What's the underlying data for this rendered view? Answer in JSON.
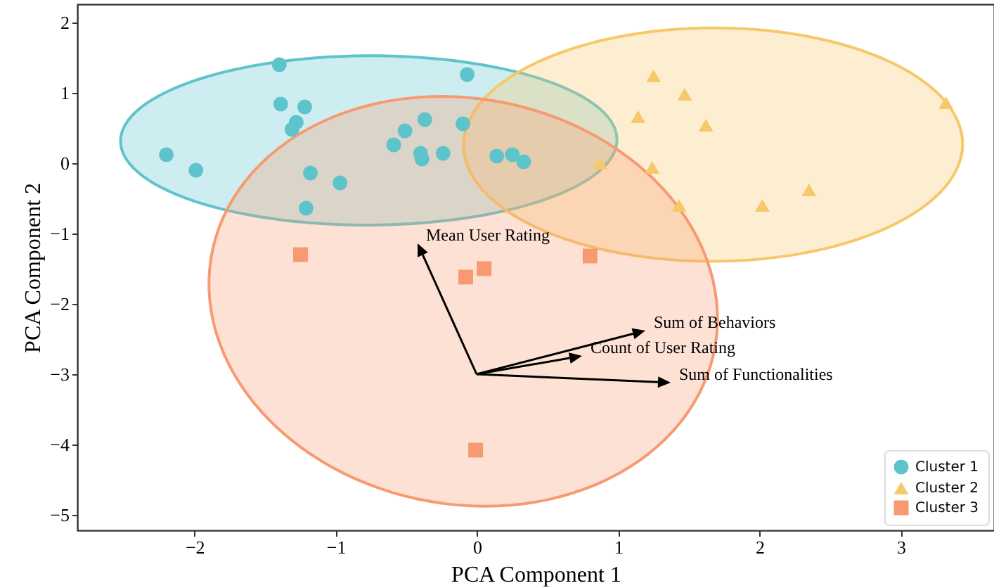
{
  "chart_data": {
    "type": "scatter",
    "xlabel": "PCA Component 1",
    "ylabel": "PCA Component 2",
    "xlim": [
      -2.83,
      3.66
    ],
    "ylim": [
      -5.22,
      2.26
    ],
    "xticks": [
      -2,
      -1,
      0,
      1,
      2,
      3
    ],
    "yticks": [
      -5,
      -4,
      -3,
      -2,
      -1,
      0,
      1,
      2
    ],
    "legend": "bottom right",
    "series": [
      {
        "name": "Cluster 1",
        "marker": "circle",
        "color": "#5ec4cc",
        "x": [
          -1.4,
          -0.07,
          -1.39,
          -1.22,
          -1.28,
          -1.31,
          -2.2,
          -1.99,
          -1.18,
          -0.97,
          -1.21,
          -0.51,
          -0.37,
          -0.59,
          -0.4,
          -0.39,
          -0.24,
          -0.1,
          0.14,
          0.25,
          0.33
        ],
        "values": [
          1.4,
          1.26,
          0.84,
          0.8,
          0.58,
          0.48,
          0.12,
          -0.1,
          -0.14,
          -0.28,
          -0.64,
          0.46,
          0.62,
          0.26,
          0.14,
          0.06,
          0.14,
          0.56,
          0.1,
          0.12,
          0.02
        ]
      },
      {
        "name": "Cluster 2",
        "marker": "triangle",
        "color": "#f7c86a",
        "x": [
          1.25,
          1.47,
          1.14,
          1.62,
          3.32,
          0.87,
          1.24,
          1.43,
          2.02,
          2.35
        ],
        "values": [
          1.24,
          0.98,
          0.66,
          0.54,
          0.86,
          0.0,
          -0.06,
          -0.6,
          -0.6,
          -0.38
        ]
      },
      {
        "name": "Cluster 3",
        "marker": "square",
        "color": "#f79a72",
        "x": [
          -1.25,
          -0.08,
          0.05,
          0.8,
          -0.01
        ],
        "values": [
          -1.3,
          -1.62,
          -1.5,
          -1.32,
          -4.08
        ]
      }
    ],
    "annotations": [
      "Mean User Rating",
      "Sum of Behaviors",
      "Count of User Rating",
      "Sum of Functionalities"
    ]
  }
}
